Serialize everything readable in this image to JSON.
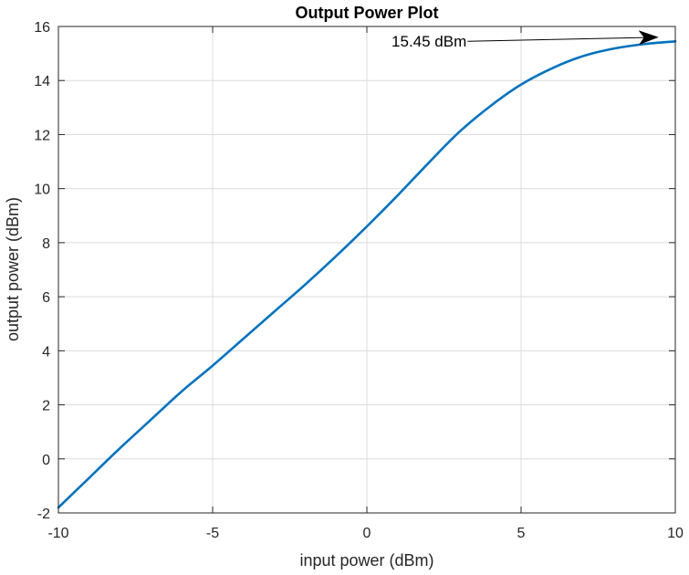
{
  "chart_data": {
    "type": "line",
    "title": "Output Power Plot",
    "xlabel": "input power (dBm)",
    "ylabel": "output power (dBm)",
    "xlim": [
      -10,
      10
    ],
    "ylim": [
      -2,
      16
    ],
    "xticks": [
      -10,
      -5,
      0,
      5,
      10
    ],
    "yticks": [
      -2,
      0,
      2,
      4,
      6,
      8,
      10,
      12,
      14,
      16
    ],
    "grid": true,
    "series": [
      {
        "color": "#0072BD",
        "x": [
          -10,
          -9,
          -8,
          -7,
          -6,
          -5,
          -4,
          -3,
          -2,
          -1,
          0,
          1,
          2,
          3,
          4,
          5,
          6,
          7,
          8,
          9,
          10
        ],
        "y": [
          -1.8,
          -0.7,
          0.4,
          1.45,
          2.5,
          3.45,
          4.45,
          5.45,
          6.45,
          7.5,
          8.6,
          9.75,
          10.95,
          12.1,
          13.05,
          13.85,
          14.45,
          14.9,
          15.18,
          15.35,
          15.45
        ]
      }
    ],
    "annotations": [
      {
        "text": "15.45 dBm",
        "point": [
          9.4,
          15.6
        ],
        "text_at": [
          0.8,
          15.25
        ]
      }
    ]
  }
}
